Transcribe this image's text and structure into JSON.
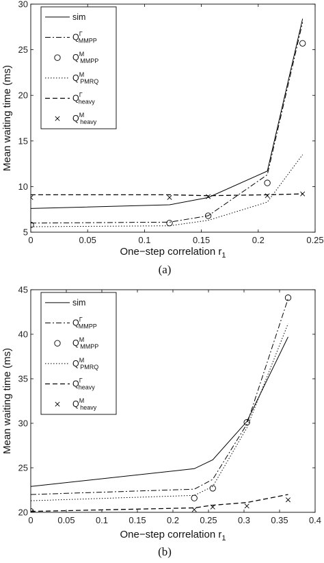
{
  "chart_data": [
    {
      "type": "line",
      "caption": "(a)",
      "xlabel": "One−step correlation r",
      "xlabel_sub": "1",
      "ylabel": "Mean waiting time (ms)",
      "xlim": [
        0,
        0.25
      ],
      "ylim": [
        5,
        30
      ],
      "xticks": [
        0,
        0.05,
        0.1,
        0.15,
        0.2,
        0.25
      ],
      "xtick_labels": [
        "0",
        "0.05",
        "0.1",
        "0.15",
        "0.2",
        "0.25"
      ],
      "yticks": [
        5,
        10,
        15,
        20,
        25,
        30
      ],
      "ytick_labels": [
        "5",
        "10",
        "15",
        "20",
        "25",
        "30"
      ],
      "grid": false,
      "legend_position": "top-left",
      "series": [
        {
          "name": "sim",
          "sub": "",
          "sup": "",
          "style": "solid",
          "x": [
            0,
            0.122,
            0.156,
            0.208,
            0.239
          ],
          "y": [
            7.6,
            8.0,
            8.8,
            11.7,
            28.4
          ]
        },
        {
          "name": "Q",
          "sub": "MMPP",
          "sup": "Γ",
          "style": "dashdot",
          "x": [
            0,
            0.122,
            0.156,
            0.208,
            0.239
          ],
          "y": [
            6.0,
            6.1,
            6.8,
            11.3,
            28.0
          ]
        },
        {
          "name": "Q",
          "sub": "MMPP",
          "sup": "M",
          "style": "circle",
          "x": [
            0,
            0.122,
            0.156,
            0.208,
            0.239
          ],
          "y": [
            5.8,
            6.0,
            6.8,
            10.4,
            25.7
          ]
        },
        {
          "name": "Q",
          "sub": "PMRQ",
          "sup": "M",
          "style": "dotted",
          "x": [
            0,
            0.122,
            0.156,
            0.208,
            0.239
          ],
          "y": [
            5.6,
            5.7,
            6.3,
            8.3,
            13.5
          ]
        },
        {
          "name": "Q",
          "sub": "heavy",
          "sup": "Γ",
          "style": "dashed",
          "x": [
            0,
            0.122,
            0.156,
            0.208,
            0.239
          ],
          "y": [
            9.1,
            9.1,
            9.0,
            9.1,
            9.2
          ]
        },
        {
          "name": "Q",
          "sub": "heavy",
          "sup": "M",
          "style": "cross",
          "x": [
            0,
            0.122,
            0.156,
            0.208,
            0.239
          ],
          "y": [
            8.8,
            8.8,
            8.9,
            9.0,
            9.2
          ]
        }
      ]
    },
    {
      "type": "line",
      "caption": "(b)",
      "xlabel": "One−step correlation r",
      "xlabel_sub": "1",
      "ylabel": "Mean waiting time (ms)",
      "xlim": [
        0,
        0.4
      ],
      "ylim": [
        20,
        45
      ],
      "xticks": [
        0,
        0.05,
        0.1,
        0.15,
        0.2,
        0.25,
        0.3,
        0.35,
        0.4
      ],
      "xtick_labels": [
        "0",
        "0.05",
        "0.1",
        "0.15",
        "0.2",
        "0.25",
        "0.3",
        "0.35",
        "0.4"
      ],
      "yticks": [
        20,
        25,
        30,
        35,
        40,
        45
      ],
      "ytick_labels": [
        "20",
        "25",
        "30",
        "35",
        "40",
        "45"
      ],
      "grid": false,
      "legend_position": "top-left",
      "series": [
        {
          "name": "sim",
          "sub": "",
          "sup": "",
          "style": "solid",
          "x": [
            0,
            0.23,
            0.256,
            0.304,
            0.362
          ],
          "y": [
            22.9,
            24.9,
            25.9,
            30.2,
            39.7
          ]
        },
        {
          "name": "Q",
          "sub": "MMPP",
          "sup": "Γ",
          "style": "dashdot",
          "x": [
            0,
            0.23,
            0.256,
            0.304,
            0.362
          ],
          "y": [
            22.0,
            22.6,
            23.7,
            29.9,
            44.0
          ]
        },
        {
          "name": "Q",
          "sub": "MMPP",
          "sup": "M",
          "style": "circle",
          "x": [
            0,
            0.23,
            0.256,
            0.304,
            0.362
          ],
          "y": [
            20.1,
            21.6,
            22.7,
            30.1,
            44.1
          ]
        },
        {
          "name": "Q",
          "sub": "PMRQ",
          "sup": "M",
          "style": "dotted",
          "x": [
            0,
            0.23,
            0.256,
            0.304,
            0.362
          ],
          "y": [
            21.3,
            21.9,
            22.9,
            29.5,
            41.2
          ]
        },
        {
          "name": "Q",
          "sub": "heavy",
          "sup": "Γ",
          "style": "dashed",
          "x": [
            0,
            0.23,
            0.256,
            0.304,
            0.362
          ],
          "y": [
            20.1,
            20.5,
            20.8,
            21.1,
            22.0
          ]
        },
        {
          "name": "Q",
          "sub": "heavy",
          "sup": "M",
          "style": "cross",
          "x": [
            0,
            0.23,
            0.256,
            0.304,
            0.362
          ],
          "y": [
            20.0,
            20.3,
            20.6,
            20.7,
            21.4
          ]
        }
      ]
    }
  ]
}
